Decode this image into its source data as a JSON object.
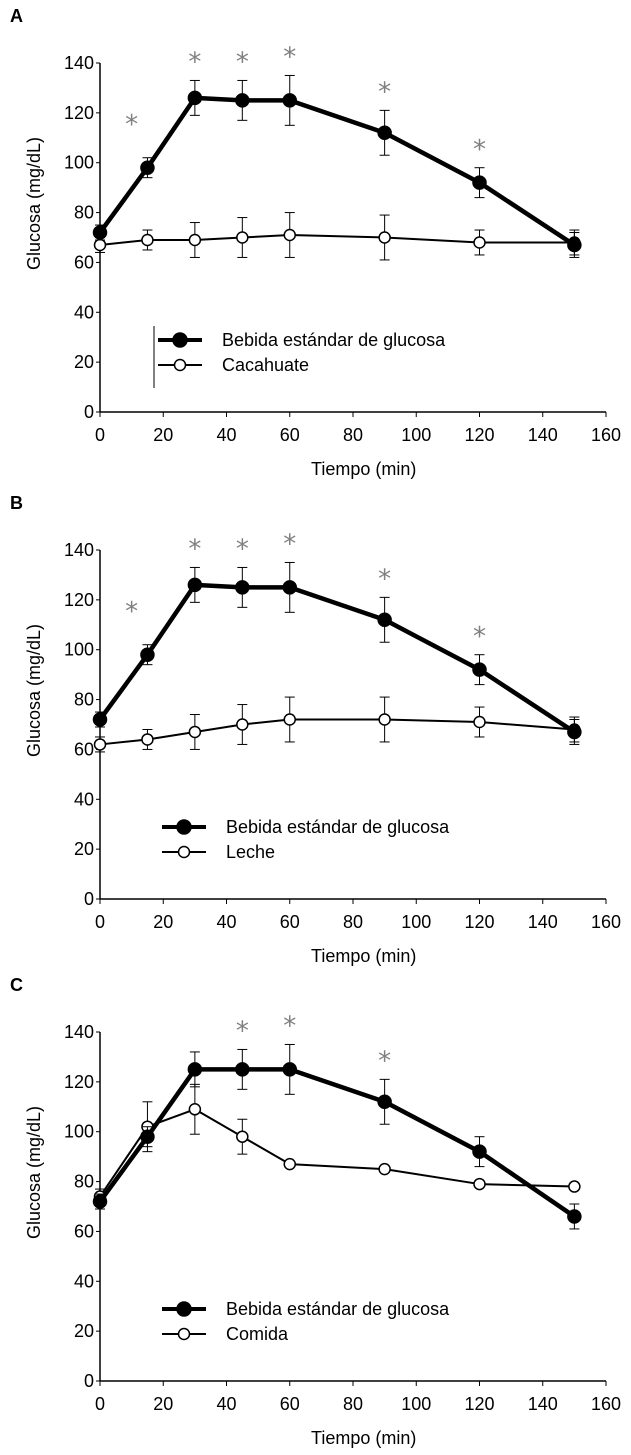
{
  "chart_data": [
    {
      "panel": "A",
      "type": "line",
      "xlabel": "Tiempo (min)",
      "ylabel": "Glucosa (mg/dL)",
      "xlim": [
        0,
        160
      ],
      "ylim": [
        0,
        140
      ],
      "xticks": [
        "0",
        "20",
        "40",
        "60",
        "80",
        "100",
        "120",
        "140",
        "160"
      ],
      "yticks": [
        "0",
        "20",
        "40",
        "60",
        "80",
        "100",
        "120",
        "140"
      ],
      "legend_position": "center-left",
      "series": [
        {
          "name": "Bebida estándar de glucosa",
          "marker": "filled-circle",
          "line_width": "thick",
          "x": [
            0,
            15,
            30,
            45,
            60,
            90,
            120,
            150
          ],
          "y": [
            72,
            98,
            126,
            125,
            125,
            112,
            92,
            67
          ],
          "err": [
            3,
            4,
            7,
            8,
            10,
            9,
            6,
            5
          ]
        },
        {
          "name": "Cacahuate",
          "marker": "open-circle",
          "line_width": "thin",
          "x": [
            0,
            15,
            30,
            45,
            60,
            90,
            120,
            150
          ],
          "y": [
            67,
            69,
            69,
            70,
            71,
            70,
            68,
            68
          ],
          "err": [
            3,
            4,
            7,
            8,
            9,
            9,
            5,
            5
          ]
        }
      ],
      "significance_x": [
        10,
        30,
        45,
        60,
        90,
        120
      ],
      "significance_marker": "*"
    },
    {
      "panel": "B",
      "type": "line",
      "xlabel": "Tiempo (min)",
      "ylabel": "Glucosa (mg/dL)",
      "xlim": [
        0,
        160
      ],
      "ylim": [
        0,
        140
      ],
      "xticks": [
        "0",
        "20",
        "40",
        "60",
        "80",
        "100",
        "120",
        "140",
        "160"
      ],
      "yticks": [
        "0",
        "20",
        "40",
        "60",
        "80",
        "100",
        "120",
        "140"
      ],
      "legend_position": "bottom-center",
      "series": [
        {
          "name": "Bebida estándar de glucosa",
          "marker": "filled-circle",
          "line_width": "thick",
          "x": [
            0,
            15,
            30,
            45,
            60,
            90,
            120,
            150
          ],
          "y": [
            72,
            98,
            126,
            125,
            125,
            112,
            92,
            67
          ],
          "err": [
            3,
            4,
            7,
            8,
            10,
            9,
            6,
            5
          ]
        },
        {
          "name": "Leche",
          "marker": "open-circle",
          "line_width": "thin",
          "x": [
            0,
            15,
            30,
            45,
            60,
            90,
            120,
            150
          ],
          "y": [
            62,
            64,
            67,
            70,
            72,
            72,
            71,
            68
          ],
          "err": [
            3,
            4,
            7,
            8,
            9,
            9,
            6,
            5
          ]
        }
      ],
      "significance_x": [
        10,
        30,
        45,
        60,
        90,
        120
      ],
      "significance_marker": "*"
    },
    {
      "panel": "C",
      "type": "line",
      "xlabel": "Tiempo (min)",
      "ylabel": "Glucosa (mg/dL)",
      "xlim": [
        0,
        160
      ],
      "ylim": [
        0,
        140
      ],
      "xticks": [
        "0",
        "20",
        "40",
        "60",
        "80",
        "100",
        "120",
        "140",
        "160"
      ],
      "yticks": [
        "0",
        "20",
        "40",
        "60",
        "80",
        "100",
        "120",
        "140"
      ],
      "legend_position": "bottom-center",
      "series": [
        {
          "name": "Bebida estándar de glucosa",
          "marker": "filled-circle",
          "line_width": "thick",
          "x": [
            0,
            15,
            30,
            45,
            60,
            90,
            120,
            150
          ],
          "y": [
            72,
            98,
            125,
            125,
            125,
            112,
            92,
            66
          ],
          "err": [
            3,
            4,
            7,
            8,
            10,
            9,
            6,
            5
          ]
        },
        {
          "name": "Comida",
          "marker": "open-circle",
          "line_width": "thin",
          "x": [
            0,
            15,
            30,
            45,
            60,
            90,
            120,
            150
          ],
          "y": [
            74,
            102,
            109,
            98,
            87,
            85,
            79,
            78
          ],
          "err": [
            3,
            10,
            10,
            7,
            0,
            0,
            0,
            0
          ]
        }
      ],
      "significance_x": [
        45,
        60,
        90
      ],
      "significance_marker": "*"
    }
  ]
}
